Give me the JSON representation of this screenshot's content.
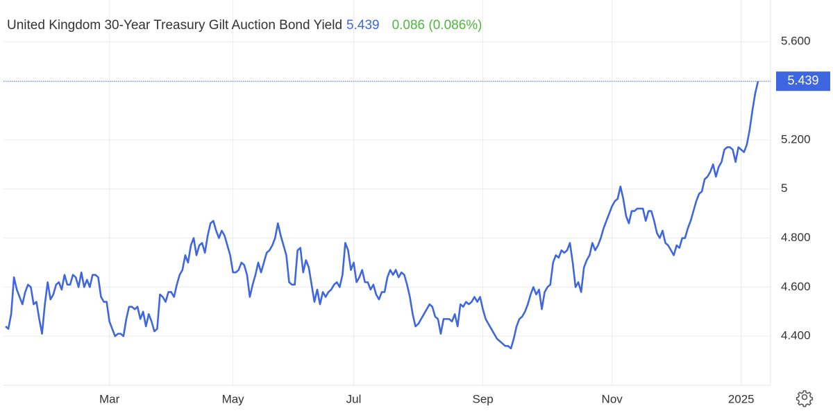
{
  "chart_data": {
    "type": "line",
    "title": "United Kingdom 30-Year Treasury Gilt Auction Bond Yield",
    "change": "0.086 (0.086%)",
    "color": "#3d66e0",
    "change_color": "#4cb83a",
    "grid": true,
    "ylim": [
      4.2,
      5.77
    ],
    "yticks": [
      {
        "value": 4.4,
        "label": "4.400"
      },
      {
        "value": 4.6,
        "label": "4.600"
      },
      {
        "value": 4.8,
        "label": "4.800"
      },
      5,
      {
        "value": 5.2,
        "label": "5.200"
      },
      {
        "value": 5.6,
        "label": "5.600"
      }
    ],
    "xticks": [
      {
        "value": 37,
        "label": "Mar"
      },
      {
        "value": 81,
        "label": "May"
      },
      {
        "value": 124,
        "label": "Jul"
      },
      {
        "value": 170,
        "label": "Sep"
      },
      {
        "value": 216,
        "label": "Nov"
      },
      {
        "value": 262,
        "label": "2025"
      }
    ],
    "values": [
      4.44,
      4.43,
      4.49,
      4.64,
      4.59,
      4.56,
      4.53,
      4.58,
      4.61,
      4.6,
      4.53,
      4.54,
      4.47,
      4.41,
      4.53,
      4.62,
      4.55,
      4.57,
      4.61,
      4.62,
      4.59,
      4.65,
      4.61,
      4.61,
      4.65,
      4.64,
      4.6,
      4.66,
      4.6,
      4.63,
      4.6,
      4.65,
      4.65,
      4.64,
      4.56,
      4.54,
      4.54,
      4.46,
      4.43,
      4.4,
      4.41,
      4.41,
      4.4,
      4.47,
      4.52,
      4.52,
      4.51,
      4.52,
      4.47,
      4.5,
      4.44,
      4.49,
      4.46,
      4.42,
      4.43,
      4.57,
      4.56,
      4.54,
      4.58,
      4.58,
      4.56,
      4.61,
      4.65,
      4.67,
      4.73,
      4.7,
      4.77,
      4.8,
      4.73,
      4.77,
      4.78,
      4.74,
      4.81,
      4.86,
      4.87,
      4.83,
      4.8,
      4.83,
      4.81,
      4.77,
      4.73,
      4.66,
      4.66,
      4.67,
      4.7,
      4.69,
      4.65,
      4.56,
      4.61,
      4.65,
      4.7,
      4.66,
      4.7,
      4.74,
      4.75,
      4.77,
      4.8,
      4.86,
      4.81,
      4.77,
      4.73,
      4.62,
      4.61,
      4.61,
      4.75,
      4.76,
      4.66,
      4.71,
      4.68,
      4.61,
      4.54,
      4.59,
      4.53,
      4.58,
      4.56,
      4.58,
      4.59,
      4.61,
      4.62,
      4.6,
      4.65,
      4.78,
      4.75,
      4.67,
      4.7,
      4.62,
      4.64,
      4.67,
      4.62,
      4.62,
      4.59,
      4.61,
      4.57,
      4.55,
      4.58,
      4.58,
      4.64,
      4.67,
      4.65,
      4.67,
      4.64,
      4.66,
      4.65,
      4.61,
      4.56,
      4.49,
      4.44,
      4.45,
      4.47,
      4.49,
      4.51,
      4.53,
      4.52,
      4.48,
      4.47,
      4.41,
      4.47,
      4.47,
      4.47,
      4.46,
      4.49,
      4.44,
      4.53,
      4.52,
      4.54,
      4.53,
      4.54,
      4.56,
      4.54,
      4.56,
      4.51,
      4.47,
      4.45,
      4.43,
      4.41,
      4.39,
      4.38,
      4.37,
      4.36,
      4.36,
      4.35,
      4.39,
      4.44,
      4.47,
      4.48,
      4.5,
      4.53,
      4.57,
      4.6,
      4.57,
      4.59,
      4.51,
      4.58,
      4.6,
      4.61,
      4.7,
      4.73,
      4.72,
      4.75,
      4.74,
      4.75,
      4.78,
      4.7,
      4.6,
      4.62,
      4.58,
      4.68,
      4.71,
      4.73,
      4.78,
      4.75,
      4.77,
      4.8,
      4.84,
      4.87,
      4.9,
      4.93,
      4.95,
      4.96,
      5.01,
      4.96,
      4.89,
      4.86,
      4.91,
      4.91,
      4.92,
      4.92,
      4.92,
      4.87,
      4.91,
      4.91,
      4.87,
      4.82,
      4.8,
      4.83,
      4.78,
      4.77,
      4.75,
      4.73,
      4.77,
      4.76,
      4.8,
      4.8,
      4.84,
      4.87,
      4.91,
      4.95,
      4.98,
      4.99,
      5.04,
      5.05,
      5.07,
      5.1,
      5.05,
      5.09,
      5.11,
      5.16,
      5.17,
      5.17,
      5.16,
      5.11,
      5.17,
      5.16,
      5.15,
      5.18,
      5.24,
      5.32,
      5.39,
      5.439
    ]
  }
}
